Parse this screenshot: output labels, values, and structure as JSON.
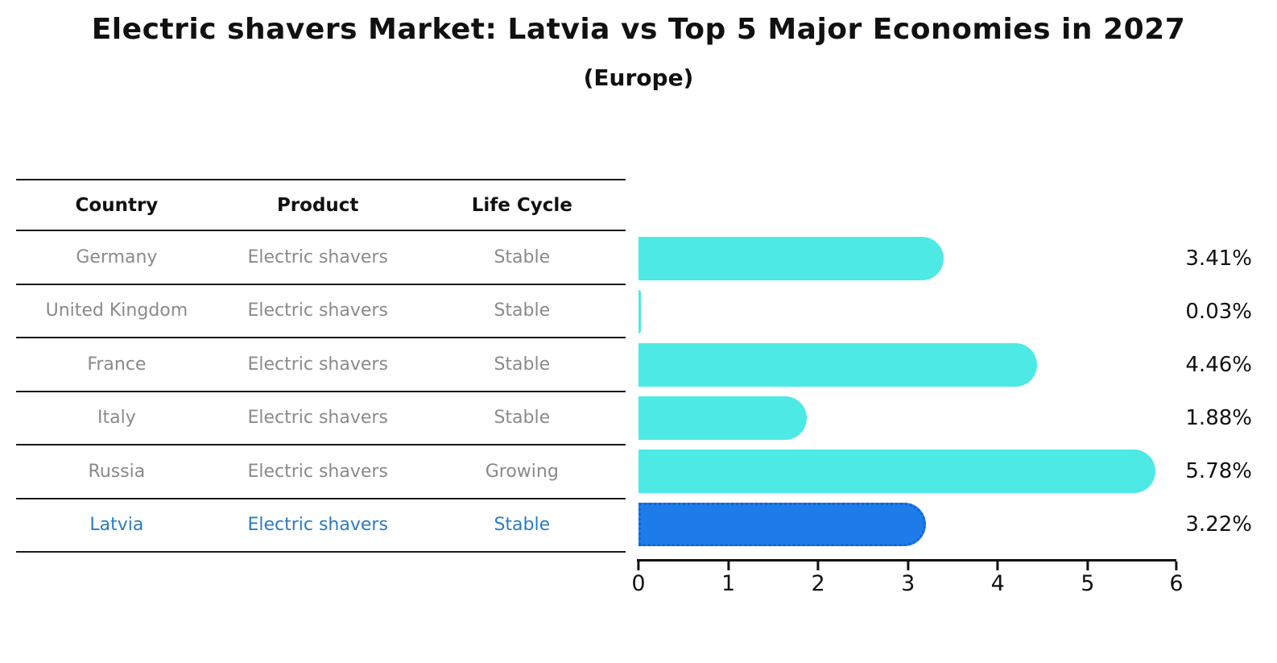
{
  "chart_data": {
    "type": "bar",
    "orientation": "horizontal",
    "title": "Electric shavers Market: Latvia vs Top 5 Major Economies in 2027",
    "subtitle": "(Europe)",
    "categories": [
      "Germany",
      "United Kingdom",
      "France",
      "Italy",
      "Russia",
      "Latvia"
    ],
    "values": [
      3.41,
      0.03,
      4.46,
      1.88,
      5.78,
      3.22
    ],
    "value_labels": [
      "3.41%",
      "0.03%",
      "4.46%",
      "1.88%",
      "5.78%",
      "3.22%"
    ],
    "xlim": [
      0,
      6
    ],
    "xticklabels": [
      "0",
      "1",
      "2",
      "3",
      "4",
      "5",
      "6"
    ],
    "grid": false,
    "legend": false,
    "bar_color": "#4de9e4",
    "highlight_index": 5,
    "highlight_bar_color": "#1e7ce8",
    "highlight_bar_border_color": "#1463d6",
    "highlight_text_color": "#2a7cc2",
    "muted_text_color": "#8a8a8a"
  },
  "table": {
    "headers": [
      "Country",
      "Product",
      "Life Cycle"
    ],
    "rows": [
      {
        "country": "Germany",
        "product": "Electric shavers",
        "life_cycle": "Stable"
      },
      {
        "country": "United Kingdom",
        "product": "Electric shavers",
        "life_cycle": "Stable"
      },
      {
        "country": "France",
        "product": "Electric shavers",
        "life_cycle": "Stable"
      },
      {
        "country": "Italy",
        "product": "Electric shavers",
        "life_cycle": "Stable"
      },
      {
        "country": "Russia",
        "product": "Electric shavers",
        "life_cycle": "Growing"
      },
      {
        "country": "Latvia",
        "product": "Electric shavers",
        "life_cycle": "Stable"
      }
    ]
  }
}
